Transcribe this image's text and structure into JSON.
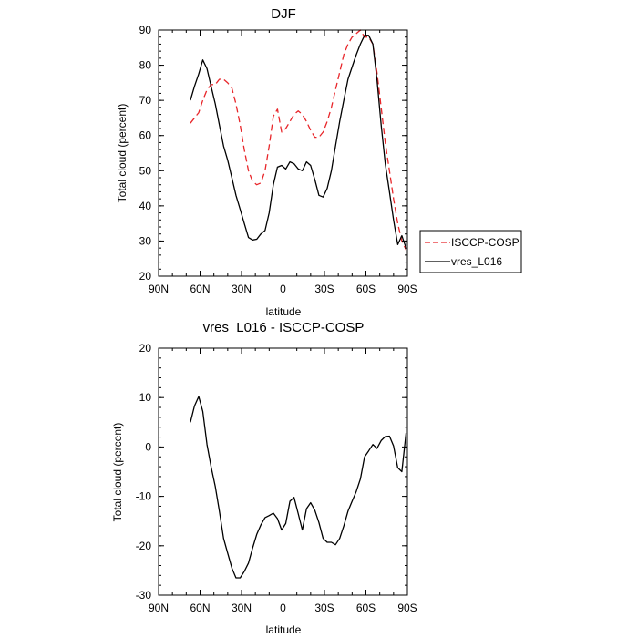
{
  "chart_data": [
    {
      "type": "line",
      "title": "DJF",
      "xlabel": "latitude",
      "ylabel": "Total cloud (percent)",
      "xlim": [
        90,
        -90
      ],
      "ylim": [
        20,
        90
      ],
      "xticks": [
        {
          "value": 90,
          "label": "90N"
        },
        {
          "value": 60,
          "label": "60N"
        },
        {
          "value": 30,
          "label": "30N"
        },
        {
          "value": 0,
          "label": "0"
        },
        {
          "value": -30,
          "label": "30S"
        },
        {
          "value": -60,
          "label": "60S"
        },
        {
          "value": -90,
          "label": "90S"
        }
      ],
      "yticks": [
        20,
        30,
        40,
        50,
        60,
        70,
        80,
        90
      ],
      "legend": {
        "position": "right",
        "entries": [
          "ISCCP-COSP",
          "vres_L016"
        ]
      },
      "series": [
        {
          "name": "ISCCP-COSP",
          "color": "#e8262a",
          "dash": "dashed",
          "x": [
            67,
            64,
            61,
            58,
            55,
            52,
            49,
            46,
            43,
            40,
            37,
            34,
            31,
            28,
            25,
            22,
            19,
            16,
            13,
            10,
            7,
            4,
            1,
            -2,
            -5,
            -8,
            -11,
            -14,
            -17,
            -20,
            -23,
            -26,
            -29,
            -32,
            -35,
            -38,
            -41,
            -44,
            -47,
            -50,
            -53,
            -56,
            -59,
            -62,
            -65,
            -68,
            -71,
            -74,
            -77,
            -80,
            -83,
            -86,
            -89
          ],
          "y": [
            63.5,
            65,
            66.5,
            70,
            73,
            74.5,
            74.5,
            76,
            76,
            75,
            73.5,
            69,
            63,
            56,
            50,
            47,
            46,
            46.5,
            50,
            57,
            65.5,
            67.5,
            61,
            62,
            64,
            66,
            67,
            66,
            64,
            61.5,
            59.5,
            59.5,
            61,
            64,
            68,
            73,
            78,
            83,
            86,
            88,
            89,
            90,
            88,
            88,
            86,
            78,
            68,
            58,
            50,
            42,
            35,
            30,
            27.5
          ]
        },
        {
          "name": "vres_L016",
          "color": "#000000",
          "dash": "solid",
          "x": [
            67,
            64,
            61,
            58,
            55,
            52,
            49,
            46,
            43,
            40,
            37,
            34,
            31,
            28,
            25,
            22,
            19,
            16,
            13,
            10,
            7,
            4,
            1,
            -2,
            -5,
            -8,
            -11,
            -14,
            -17,
            -20,
            -23,
            -26,
            -29,
            -32,
            -35,
            -38,
            -41,
            -44,
            -47,
            -50,
            -53,
            -56,
            -59,
            -62,
            -65,
            -68,
            -71,
            -74,
            -77,
            -80,
            -83,
            -86,
            -89
          ],
          "y": [
            70,
            74,
            77.5,
            81.5,
            79,
            74,
            69,
            63,
            57,
            53,
            48,
            43,
            39,
            35,
            31,
            30.3,
            30.5,
            32,
            33,
            38,
            46,
            51,
            51.5,
            50.5,
            52.5,
            52,
            50.5,
            50,
            52.5,
            51.5,
            47.5,
            43,
            42.5,
            45,
            50,
            57,
            64,
            70,
            76,
            79.5,
            83,
            86,
            88.5,
            88.5,
            86,
            76,
            63,
            52,
            44,
            36,
            29,
            31.5,
            28
          ]
        }
      ]
    },
    {
      "type": "line",
      "title": "vres_L016 - ISCCP-COSP",
      "xlabel": "latitude",
      "ylabel": "Total cloud (percent)",
      "xlim": [
        90,
        -90
      ],
      "ylim": [
        -30,
        20
      ],
      "xticks": [
        {
          "value": 90,
          "label": "90N"
        },
        {
          "value": 60,
          "label": "60N"
        },
        {
          "value": 30,
          "label": "30N"
        },
        {
          "value": 0,
          "label": "0"
        },
        {
          "value": -30,
          "label": "30S"
        },
        {
          "value": -60,
          "label": "60S"
        },
        {
          "value": -90,
          "label": "90S"
        }
      ],
      "yticks": [
        -30,
        -20,
        -10,
        0,
        10,
        20
      ],
      "series": [
        {
          "name": "vres_L016 - ISCCP-COSP",
          "color": "#000000",
          "dash": "solid",
          "x": [
            67,
            64,
            61,
            58,
            55,
            52,
            49,
            46,
            43,
            40,
            37,
            34,
            31,
            28,
            25,
            22,
            19,
            16,
            13,
            10,
            7,
            4,
            1,
            -2,
            -5,
            -8,
            -11,
            -14,
            -17,
            -20,
            -23,
            -26,
            -29,
            -32,
            -35,
            -38,
            -41,
            -44,
            -47,
            -50,
            -53,
            -56,
            -59,
            -62,
            -65,
            -68,
            -71,
            -74,
            -77,
            -80,
            -83,
            -86,
            -89
          ],
          "y": [
            5,
            8.3,
            10.2,
            7.2,
            0.5,
            -4,
            -8,
            -13,
            -18.5,
            -21.5,
            -24.5,
            -26.5,
            -26.5,
            -25.2,
            -23.5,
            -20.5,
            -17.7,
            -15.8,
            -14.3,
            -13.9,
            -13.4,
            -14.5,
            -16.8,
            -15.5,
            -11,
            -10.2,
            -13.5,
            -16.8,
            -12.5,
            -11.3,
            -12.8,
            -15.3,
            -18.5,
            -19.3,
            -19.3,
            -19.8,
            -18.5,
            -16,
            -13,
            -11,
            -9,
            -6.5,
            -2,
            -0.8,
            0.5,
            -0.3,
            1.3,
            2.1,
            2.2,
            0.2,
            -4.2,
            -5,
            2.8
          ]
        }
      ]
    }
  ]
}
